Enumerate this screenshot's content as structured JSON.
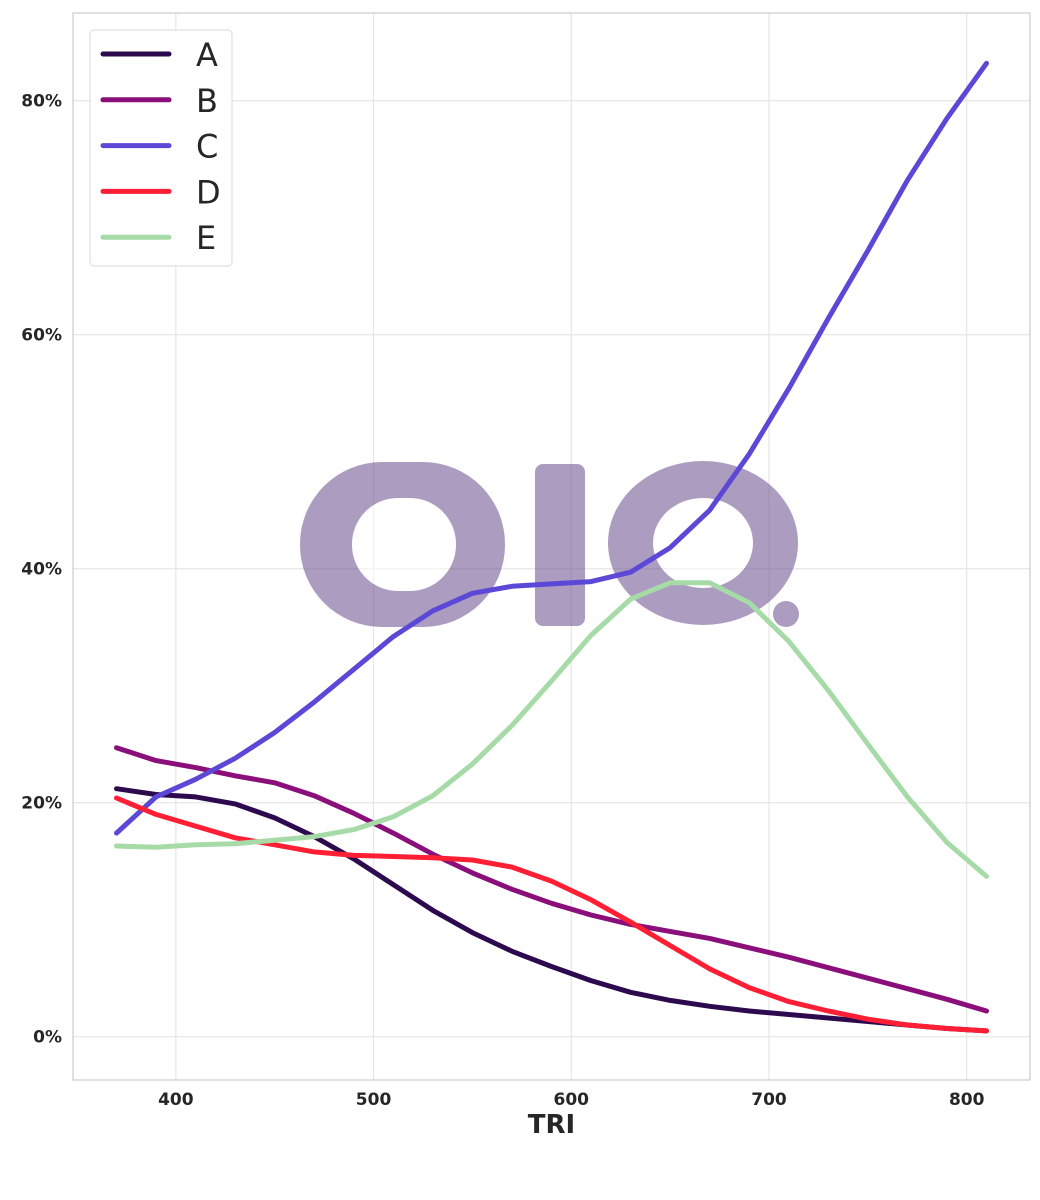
{
  "chart_data": {
    "type": "line",
    "title": "",
    "xlabel": "TRI",
    "ylabel": "",
    "xlim": [
      348,
      832
    ],
    "ylim": [
      -3.7,
      87.5
    ],
    "xticks": [
      400,
      500,
      600,
      700,
      800
    ],
    "yticks": [
      0,
      20,
      40,
      60,
      80
    ],
    "ytick_labels": [
      "0%",
      "20%",
      "40%",
      "60%",
      "80%"
    ],
    "grid": true,
    "legend_position": "top-left",
    "x": [
      370,
      390,
      410,
      430,
      450,
      470,
      490,
      510,
      530,
      550,
      570,
      590,
      610,
      630,
      650,
      670,
      690,
      710,
      730,
      750,
      770,
      790,
      810
    ],
    "series": [
      {
        "name": "A",
        "color": "#2d0a4e",
        "values": [
          21.2,
          20.7,
          20.5,
          19.9,
          18.7,
          17.1,
          15.2,
          13.0,
          10.8,
          8.9,
          7.3,
          6.0,
          4.8,
          3.8,
          3.1,
          2.6,
          2.2,
          1.9,
          1.6,
          1.3,
          1.0,
          0.7,
          0.5
        ]
      },
      {
        "name": "B",
        "color": "#8b0f7a",
        "values": [
          24.7,
          23.6,
          23.0,
          22.3,
          21.7,
          20.6,
          19.1,
          17.4,
          15.6,
          14.0,
          12.6,
          11.4,
          10.4,
          9.6,
          9.0,
          8.4,
          7.6,
          6.8,
          5.9,
          5.0,
          4.1,
          3.2,
          2.2
        ]
      },
      {
        "name": "C",
        "color": "#5b48d6",
        "values": [
          17.4,
          20.5,
          22.0,
          23.8,
          26.0,
          28.6,
          31.4,
          34.2,
          36.4,
          37.9,
          38.5,
          38.7,
          38.9,
          39.7,
          41.8,
          45.0,
          49.8,
          55.4,
          61.4,
          67.2,
          73.2,
          78.5,
          83.2
        ]
      },
      {
        "name": "D",
        "color": "#ff1f35",
        "values": [
          20.4,
          19.0,
          18.0,
          17.0,
          16.4,
          15.8,
          15.5,
          15.4,
          15.3,
          15.1,
          14.5,
          13.3,
          11.7,
          9.8,
          7.8,
          5.8,
          4.2,
          3.0,
          2.2,
          1.5,
          1.0,
          0.7,
          0.5
        ]
      },
      {
        "name": "E",
        "color": "#a6dba7",
        "values": [
          16.3,
          16.2,
          16.4,
          16.5,
          16.8,
          17.1,
          17.7,
          18.8,
          20.6,
          23.3,
          26.6,
          30.4,
          34.3,
          37.4,
          38.8,
          38.8,
          37.1,
          33.8,
          29.6,
          25.0,
          20.5,
          16.6,
          13.7
        ]
      }
    ]
  }
}
